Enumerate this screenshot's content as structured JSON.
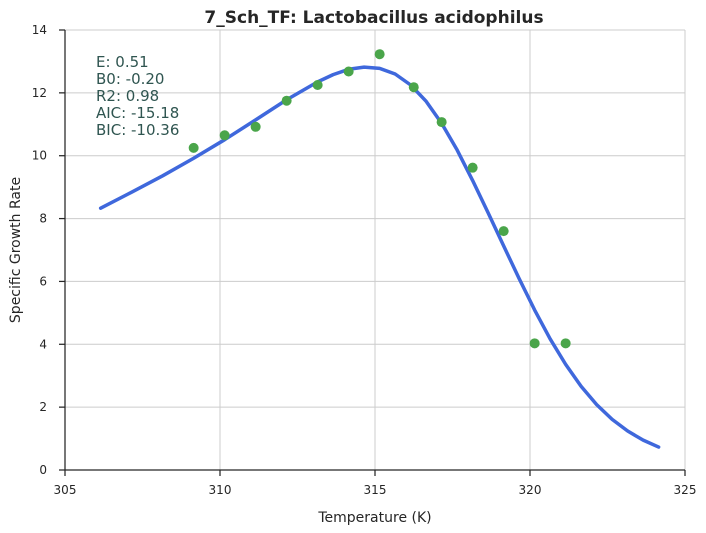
{
  "chart_data": {
    "type": "scatter",
    "title": "7_Sch_TF: Lactobacillus acidophilus",
    "xlabel": "Temperature (K)",
    "ylabel": "Specific Growth Rate",
    "xlim": [
      305,
      325
    ],
    "ylim": [
      0,
      14
    ],
    "xticks": [
      305,
      310,
      315,
      320,
      325
    ],
    "yticks": [
      0,
      2,
      4,
      6,
      8,
      10,
      12,
      14
    ],
    "grid": true,
    "colors": {
      "points": "#4aa54a",
      "fit_line": "#3f68dc",
      "annotation": "#2f5550",
      "grid": "#cccccc",
      "axis": "#262626"
    },
    "series": [
      {
        "kind": "points",
        "x": [
          309.15,
          310.15,
          311.15,
          312.15,
          313.15,
          314.15,
          315.15,
          316.25,
          317.15,
          318.15,
          319.15,
          320.15,
          321.15
        ],
        "y": [
          10.25,
          10.65,
          10.92,
          11.75,
          12.25,
          12.68,
          13.23,
          12.18,
          11.07,
          9.62,
          7.6,
          4.03,
          4.03
        ]
      },
      {
        "kind": "fit",
        "x": [
          306.15,
          307.15,
          308.15,
          309.15,
          310.15,
          311.15,
          312.15,
          313.15,
          313.65,
          314.15,
          314.65,
          315.15,
          315.65,
          316.15,
          316.65,
          317.15,
          317.65,
          318.15,
          318.65,
          319.15,
          319.65,
          320.15,
          320.65,
          321.15,
          321.65,
          322.15,
          322.65,
          323.15,
          323.65,
          324.15
        ],
        "y": [
          8.33,
          8.84,
          9.36,
          9.92,
          10.51,
          11.14,
          11.78,
          12.35,
          12.58,
          12.75,
          12.82,
          12.78,
          12.6,
          12.25,
          11.73,
          11.03,
          10.18,
          9.21,
          8.18,
          7.13,
          6.09,
          5.09,
          4.17,
          3.36,
          2.66,
          2.08,
          1.61,
          1.24,
          0.95,
          0.73
        ]
      }
    ],
    "annotations": [
      "E:  0.51",
      "B0:  -0.20",
      "R2:  0.98",
      "AIC: -15.18",
      "BIC: -10.36"
    ]
  }
}
